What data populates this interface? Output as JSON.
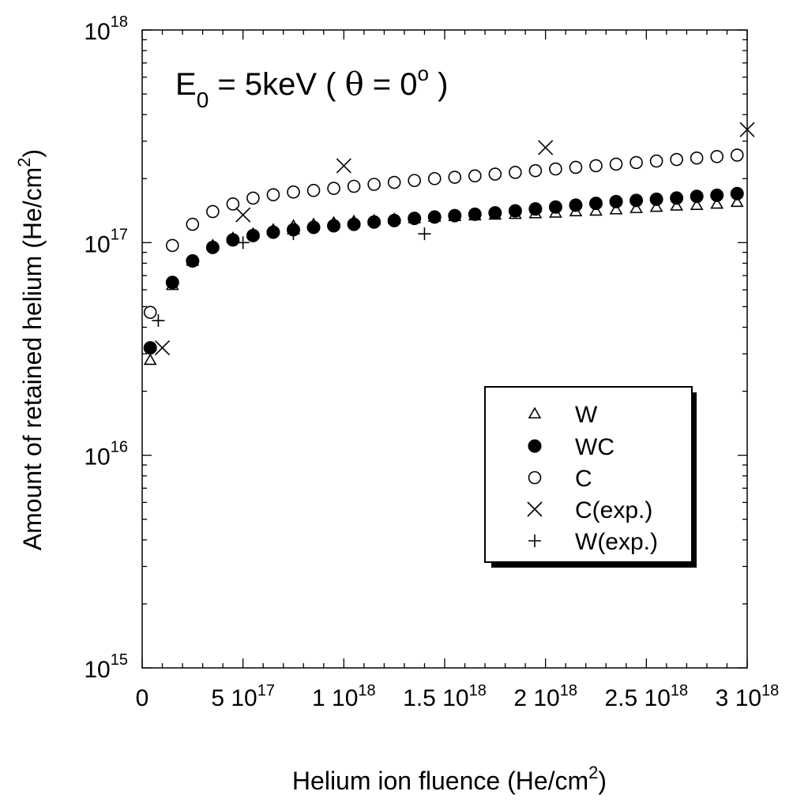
{
  "chart_data": {
    "type": "scatter",
    "title": "",
    "annotation": {
      "e_main": "E",
      "e_sub": "0",
      "mid": " = 5keV ( ",
      "theta": "θ",
      "eq": " = 0",
      "deg": "o",
      "close": " )"
    },
    "xlabel": {
      "main": "Helium ion fluence (He/cm",
      "sup": "2",
      "close": ")"
    },
    "ylabel": {
      "main": "Amount of retained helium (He/cm",
      "sup": "2",
      "close": ")"
    },
    "x_scale": "linear",
    "y_scale": "log",
    "xlim": [
      0,
      3e+18
    ],
    "ylim": [
      1000000000000000.0,
      1e+18
    ],
    "x_ticks": [
      {
        "value": 0,
        "main": "0",
        "sup": ""
      },
      {
        "value": 5e+17,
        "main": "5 10",
        "sup": "17"
      },
      {
        "value": 1e+18,
        "main": "1 10",
        "sup": "18"
      },
      {
        "value": 1.5e+18,
        "main": "1.5 10",
        "sup": "18"
      },
      {
        "value": 2e+18,
        "main": "2 10",
        "sup": "18"
      },
      {
        "value": 2.5e+18,
        "main": "2.5 10",
        "sup": "18"
      },
      {
        "value": 3e+18,
        "main": "3 10",
        "sup": "18"
      }
    ],
    "y_ticks": [
      {
        "value": 1000000000000000.0,
        "main": "10",
        "sup": "15"
      },
      {
        "value": 1e+16,
        "main": "10",
        "sup": "16"
      },
      {
        "value": 1e+17,
        "main": "10",
        "sup": "17"
      },
      {
        "value": 1e+18,
        "main": "10",
        "sup": "18"
      }
    ],
    "grid": false,
    "legend_position": "right-center",
    "series": [
      {
        "name": "W",
        "marker": "triangle-open",
        "x": [
          4e+16,
          1.5e+17,
          2.5e+17,
          3.5e+17,
          4.5e+17,
          5.5e+17,
          6.5e+17,
          7.5e+17,
          8.5e+17,
          9.5e+17,
          1.05e+18,
          1.15e+18,
          1.25e+18,
          1.35e+18,
          1.45e+18,
          1.55e+18,
          1.65e+18,
          1.75e+18,
          1.85e+18,
          1.95e+18,
          2.05e+18,
          2.15e+18,
          2.25e+18,
          2.35e+18,
          2.45e+18,
          2.55e+18,
          2.65e+18,
          2.75e+18,
          2.85e+18,
          2.95e+18
        ],
        "y": [
          2.8e+16,
          6.3e+16,
          8.2e+16,
          9.7e+16,
          1.05e+17,
          1.1e+17,
          1.15e+17,
          1.2e+17,
          1.22e+17,
          1.24e+17,
          1.26e+17,
          1.27e+17,
          1.29e+17,
          1.3e+17,
          1.32e+17,
          1.33e+17,
          1.34e+17,
          1.35e+17,
          1.36e+17,
          1.37e+17,
          1.38e+17,
          1.4e+17,
          1.41e+17,
          1.43e+17,
          1.45e+17,
          1.47e+17,
          1.49e+17,
          1.5e+17,
          1.52e+17,
          1.55e+17
        ]
      },
      {
        "name": "WC",
        "marker": "circle-filled",
        "x": [
          4e+16,
          1.5e+17,
          2.5e+17,
          3.5e+17,
          4.5e+17,
          5.5e+17,
          6.5e+17,
          7.5e+17,
          8.5e+17,
          9.5e+17,
          1.05e+18,
          1.15e+18,
          1.25e+18,
          1.35e+18,
          1.45e+18,
          1.55e+18,
          1.65e+18,
          1.75e+18,
          1.85e+18,
          1.95e+18,
          2.05e+18,
          2.15e+18,
          2.25e+18,
          2.35e+18,
          2.45e+18,
          2.55e+18,
          2.65e+18,
          2.75e+18,
          2.85e+18,
          2.95e+18
        ],
        "y": [
          3.2e+16,
          6.5e+16,
          8.2e+16,
          9.5e+16,
          1.03e+17,
          1.08e+17,
          1.12e+17,
          1.15e+17,
          1.18e+17,
          1.2e+17,
          1.22e+17,
          1.25e+17,
          1.27e+17,
          1.3e+17,
          1.32e+17,
          1.34e+17,
          1.36e+17,
          1.38e+17,
          1.41e+17,
          1.44e+17,
          1.47e+17,
          1.5e+17,
          1.53e+17,
          1.56e+17,
          1.58e+17,
          1.6e+17,
          1.62e+17,
          1.65e+17,
          1.67e+17,
          1.7e+17
        ]
      },
      {
        "name": "C",
        "marker": "circle-open",
        "x": [
          4e+16,
          1.5e+17,
          2.5e+17,
          3.5e+17,
          4.5e+17,
          5.5e+17,
          6.5e+17,
          7.5e+17,
          8.5e+17,
          9.5e+17,
          1.05e+18,
          1.15e+18,
          1.25e+18,
          1.35e+18,
          1.45e+18,
          1.55e+18,
          1.65e+18,
          1.75e+18,
          1.85e+18,
          1.95e+18,
          2.05e+18,
          2.15e+18,
          2.25e+18,
          2.35e+18,
          2.45e+18,
          2.55e+18,
          2.65e+18,
          2.75e+18,
          2.85e+18,
          2.95e+18
        ],
        "y": [
          4.7e+16,
          9.7e+16,
          1.22e+17,
          1.4e+17,
          1.52e+17,
          1.62e+17,
          1.68e+17,
          1.73e+17,
          1.76e+17,
          1.8e+17,
          1.84e+17,
          1.88e+17,
          1.92e+17,
          1.96e+17,
          2e+17,
          2.03e+17,
          2.06e+17,
          2.1e+17,
          2.14e+17,
          2.18e+17,
          2.22e+17,
          2.26e+17,
          2.3e+17,
          2.34e+17,
          2.38e+17,
          2.42e+17,
          2.46e+17,
          2.5e+17,
          2.54e+17,
          2.58e+17
        ]
      },
      {
        "name": "C(exp.)",
        "marker": "x",
        "x": [
          1e+17,
          5e+17,
          1e+18,
          2e+18,
          3e+18
        ],
        "y": [
          3.2e+16,
          1.35e+17,
          2.3e+17,
          2.8e+17,
          3.4e+17
        ]
      },
      {
        "name": "W(exp.)",
        "marker": "plus",
        "x": [
          8e+16,
          5e+17,
          7.5e+17,
          1.4e+18
        ],
        "y": [
          4.3e+16,
          1e+17,
          1.1e+17,
          1.1e+17
        ]
      }
    ]
  }
}
